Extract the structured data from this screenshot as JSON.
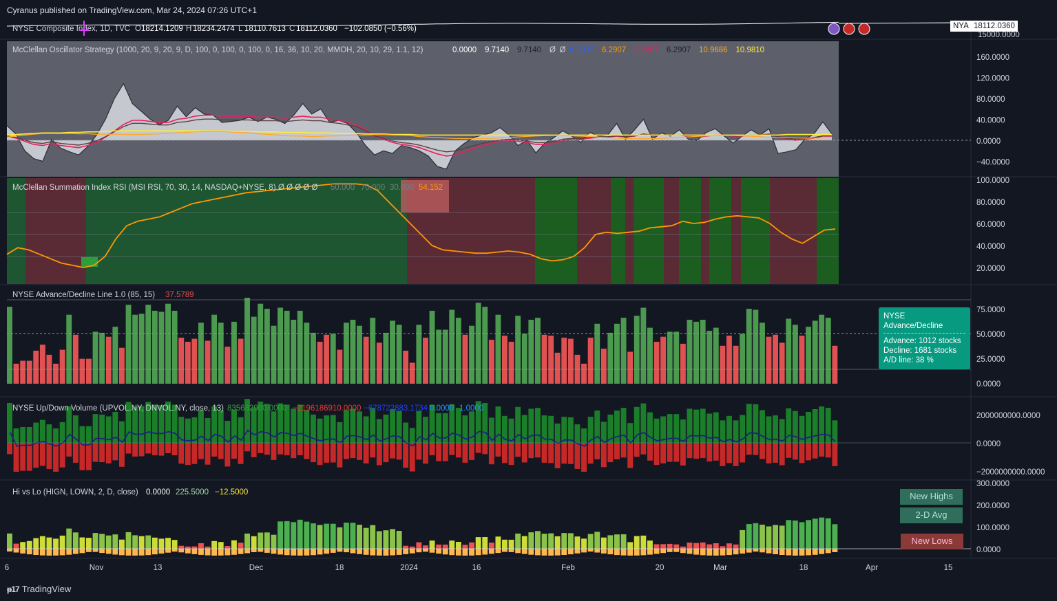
{
  "header": {
    "published": "Cyranus published on TradingView.com, Mar 24, 2024 07:26 UTC+1"
  },
  "symbol": {
    "title": "NYSE Composite Index, 1D, TVC",
    "o_label": "O",
    "o_val": "18214.1209",
    "h_label": "H",
    "h_val": "18234.2474",
    "l_label": "L",
    "l_val": "18110.7613",
    "c_label": "C",
    "c_val": "18112.0360",
    "change": "−102.0850 (−0.56%)",
    "ticker": "NYA",
    "last_price": "18112.0360",
    "scale_label": "15000.0000"
  },
  "panes": {
    "osc": {
      "title": "McClellan Oscillator Strategy (1000, 20, 9, 20, 9, D, 100, 0, 100, 0, 100, 0, 16, 36, 10, 20, MMOH, 20, 10, 29, 1.1, 12)",
      "values": [
        {
          "text": "0.0000",
          "color": "#ffffff"
        },
        {
          "text": "9.7140",
          "color": "#ffffff"
        },
        {
          "text": "9.7140",
          "color": "#1e222d"
        },
        {
          "text": "Ø",
          "color": "#d1d4dc"
        },
        {
          "text": "Ø",
          "color": "#d1d4dc"
        },
        {
          "text": "8.2087",
          "color": "#2962ff"
        },
        {
          "text": "6.2907",
          "color": "#ff9800"
        },
        {
          "text": "8.2087",
          "color": "#e91e63"
        },
        {
          "text": "6.2907",
          "color": "#1e222d"
        },
        {
          "text": "10.9686",
          "color": "#ffa726"
        },
        {
          "text": "10.9810",
          "color": "#ffeb3b"
        }
      ],
      "axis": [
        "160.0000",
        "120.0000",
        "80.0000",
        "40.0000",
        "0.0000",
        "−40.0000"
      ]
    },
    "rsi": {
      "title": "McClellan Summation Index RSI (MSI RSI, 70, 30, 14, NASDAQ+NYSE, 8)",
      "symbols": "Ø  Ø  Ø  Ø  Ø",
      "v1": "50.000",
      "v2": "70.000",
      "v3": "30.000",
      "v4": "54.152",
      "axis": [
        "100.0000",
        "80.0000",
        "60.0000",
        "40.0000",
        "20.0000"
      ]
    },
    "ad": {
      "title": "NYSE Advance/Decline Line 1.0 (85, 15)",
      "value": "37.5789",
      "axis": [
        "75.0000",
        "50.0000",
        "25.0000",
        "0.0000"
      ],
      "tooltip": {
        "title": "NYSE Advance/Decline",
        "advance": "Advance: 1012 stocks",
        "decline": "Decline: 1681 stocks",
        "adline": "A/D line: 38 %"
      }
    },
    "vol": {
      "title": "NYSE Up/Down Volume (UPVOL.NY, DNVOL.NY, close, 13)",
      "v1": "835632900.0000",
      "v2": "−2196186910.0000",
      "v3": "−678722883.1734",
      "v4": "0.0000",
      "v5": "1.0000",
      "axis": [
        "2000000000.0000",
        "0.0000",
        "−2000000000.0000"
      ]
    },
    "hilo": {
      "title": "Hi vs Lo (HIGN, LOWN, 2, D, close)",
      "v1": "0.0000",
      "v2": "225.5000",
      "v3": "−12.5000",
      "axis": [
        "300.0000",
        "200.0000",
        "100.0000",
        "0.0000"
      ],
      "legend": {
        "new_highs": "New Highs",
        "avg": "2-D Avg",
        "new_lows": "New Lows"
      }
    }
  },
  "xaxis": {
    "labels": [
      "6",
      "Nov",
      "13",
      "Dec",
      "18",
      "2024",
      "16",
      "Feb",
      "20",
      "Mar",
      "18",
      "Apr",
      "15"
    ]
  },
  "footer": {
    "brand": "TradingView"
  },
  "colors": {
    "background": "#131722",
    "up": "#2e7d32",
    "down": "#d32f2f",
    "rsi_line": "#ff9800",
    "teal": "#089981"
  },
  "chart_data": [
    {
      "type": "line",
      "name": "McClellan Oscillator",
      "ylim": [
        -60,
        190
      ],
      "series": [
        {
          "values": [
            28,
            12,
            -20,
            -35,
            -40,
            2,
            -15,
            -22,
            -28,
            -12,
            10,
            40,
            80,
            108,
            70,
            55,
            40,
            30,
            38,
            65,
            45,
            62,
            50,
            48,
            34,
            36,
            38,
            44,
            36,
            44,
            40,
            32,
            48,
            70,
            50,
            60,
            34,
            38,
            32,
            14,
            -10,
            -28,
            -20,
            -25,
            -10,
            -14,
            -20,
            -30,
            -50,
            -55,
            -20,
            -6,
            5,
            10,
            14,
            24,
            10,
            -10,
            0,
            -24,
            -5,
            5,
            18,
            8,
            -4,
            15,
            8,
            10,
            32,
            2,
            20,
            40,
            2,
            14,
            8,
            20,
            2,
            0,
            15,
            22,
            8,
            -5,
            8,
            20,
            10,
            22,
            -25,
            -22,
            -18,
            2,
            12,
            35,
            12
          ]
        },
        {
          "values": [
            8,
            4,
            -2,
            -8,
            -10,
            -6,
            -10,
            -12,
            -14,
            -10,
            -4,
            6,
            18,
            30,
            38,
            38,
            36,
            34,
            34,
            40,
            42,
            46,
            48,
            48,
            46,
            46,
            46,
            46,
            44,
            44,
            44,
            42,
            44,
            46,
            44,
            44,
            40,
            38,
            34,
            30,
            20,
            8,
            2,
            -4,
            -8,
            -10,
            -14,
            -20,
            -26,
            -30,
            -28,
            -22,
            -16,
            -10,
            -6,
            -2,
            0,
            -2,
            -4,
            -8,
            -8,
            -6,
            0,
            2,
            2,
            4,
            6,
            6,
            8,
            6,
            8,
            12,
            10,
            10,
            10,
            10,
            8,
            6,
            8,
            10,
            10,
            8,
            8,
            10,
            10,
            12,
            6,
            2,
            0,
            2,
            4,
            8,
            8
          ]
        },
        {
          "values": [
            10,
            11,
            12,
            13,
            14,
            14,
            14,
            15,
            15,
            16,
            16,
            17,
            18,
            18,
            18,
            18,
            18,
            18,
            18,
            18,
            18,
            18,
            18,
            18,
            18,
            17,
            17,
            17,
            16,
            16,
            16,
            15,
            15,
            15,
            14,
            14,
            14,
            13,
            13,
            13,
            12,
            12,
            12,
            11,
            11,
            11,
            10,
            10,
            10,
            10,
            10,
            10,
            10,
            10,
            10,
            10,
            10,
            10,
            10,
            10,
            10,
            10,
            10,
            10,
            10,
            10,
            10,
            10,
            10,
            10,
            10,
            10,
            10,
            10,
            10,
            10,
            10,
            10,
            10,
            10,
            10,
            10,
            10,
            10,
            10,
            10,
            10,
            11,
            11,
            11,
            11,
            11,
            11
          ]
        }
      ]
    },
    {
      "type": "line",
      "name": "Summation Index RSI",
      "ylim": [
        0,
        100
      ],
      "series": [
        {
          "values": [
            32,
            38,
            36,
            32,
            28,
            24,
            22,
            20,
            22,
            30,
            46,
            58,
            62,
            64,
            66,
            70,
            74,
            78,
            80,
            82,
            84,
            86,
            88,
            89,
            90,
            91,
            92,
            93,
            94,
            95,
            96,
            96,
            96,
            95,
            90,
            80,
            70,
            60,
            50,
            40,
            36,
            35,
            34,
            33,
            33,
            34,
            35,
            34,
            32,
            28,
            26,
            27,
            30,
            38,
            50,
            52,
            51,
            52,
            53,
            56,
            57,
            58,
            62,
            60,
            61,
            64,
            66,
            67,
            66,
            65,
            60,
            52,
            46,
            42,
            48,
            54,
            55
          ]
        }
      ]
    },
    {
      "type": "bar",
      "name": "NYSE Advance/Decline Line",
      "ylim": [
        0,
        90
      ],
      "values": [
        77,
        20,
        23,
        23,
        33,
        39,
        29,
        20,
        34,
        69,
        49,
        25,
        25,
        52,
        51,
        47,
        57,
        36,
        79,
        69,
        70,
        79,
        73,
        72,
        80,
        73,
        46,
        42,
        45,
        61,
        43,
        69,
        61,
        37,
        62,
        45,
        86,
        67,
        80,
        75,
        58,
        76,
        73,
        64,
        73,
        61,
        51,
        42,
        49,
        50,
        34,
        61,
        64,
        58,
        47,
        66,
        41,
        51,
        63,
        59,
        33,
        21,
        59,
        46,
        73,
        54,
        54,
        74,
        66,
        49,
        58,
        81,
        77,
        44,
        69,
        48,
        42,
        68,
        50,
        64,
        66,
        49,
        48,
        31,
        46,
        45,
        29,
        20,
        46,
        60,
        35,
        51,
        60,
        66,
        32,
        68,
        76,
        56,
        42,
        47,
        52,
        52,
        40,
        64,
        62,
        64,
        53,
        56,
        38,
        48,
        38,
        50,
        75,
        74,
        61,
        47,
        49,
        41,
        65,
        59,
        48,
        57,
        63,
        69,
        66,
        38
      ]
    },
    {
      "type": "bar",
      "name": "NYSE Up/Down Volume",
      "ylim": [
        -2500000000,
        2500000000
      ]
    },
    {
      "type": "bar",
      "name": "Hi vs Lo",
      "ylim": [
        -30,
        300
      ]
    }
  ]
}
